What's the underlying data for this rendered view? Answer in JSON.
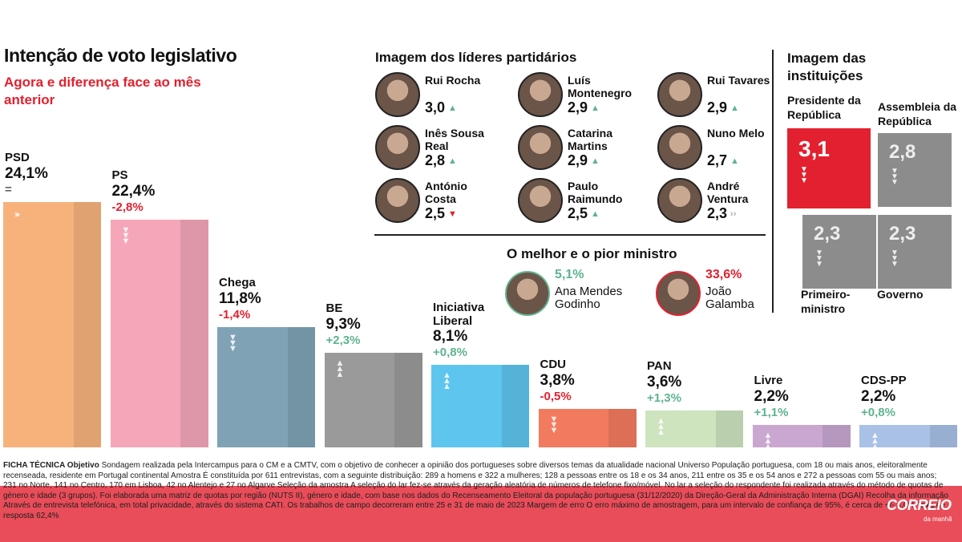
{
  "header": {
    "title": "Intenção de voto legislativo",
    "subtitle": "Agora e diferença face ao mês anterior"
  },
  "chart_data": {
    "type": "bar",
    "categories": [
      "PSD",
      "PS",
      "Chega",
      "BE",
      "Iniciativa Liberal",
      "CDU",
      "PAN",
      "Livre",
      "CDS-PP"
    ],
    "values": [
      24.1,
      22.4,
      11.8,
      9.3,
      8.1,
      3.8,
      3.6,
      2.2,
      2.2
    ],
    "value_labels": [
      "24,1%",
      "22,4%",
      "11,8%",
      "9,3%",
      "8,1%",
      "3,8%",
      "3,6%",
      "2,2%",
      "2,2%"
    ],
    "diff_labels": [
      "=",
      "-2,8%",
      "-1,4%",
      "+2,3%",
      "+0,8%",
      "-0,5%",
      "+1,3%",
      "+1,1%",
      "+0,8%"
    ],
    "diff_trend": [
      "flat",
      "down",
      "down",
      "up",
      "up",
      "down",
      "up",
      "up",
      "up"
    ],
    "colors": [
      "#f7b27c",
      "#f5a7b9",
      "#7fa3b5",
      "#9a9a9a",
      "#5ec5ee",
      "#f27b5f",
      "#cde4bf",
      "#c9a7d0",
      "#a9c1e6"
    ],
    "ylim": [
      0,
      26
    ]
  },
  "leaders": {
    "title": "Imagem dos líderes partidários",
    "items": [
      {
        "name": "Rui Rocha",
        "score": "3,0",
        "trend": "up"
      },
      {
        "name": "Luís Montenegro",
        "score": "2,9",
        "trend": "up"
      },
      {
        "name": "Rui Tavares",
        "score": "2,9",
        "trend": "up"
      },
      {
        "name": "Inês Sousa Real",
        "score": "2,8",
        "trend": "up"
      },
      {
        "name": "Catarina Martins",
        "score": "2,9",
        "trend": "up"
      },
      {
        "name": "Nuno Melo",
        "score": "2,7",
        "trend": "up"
      },
      {
        "name": "António Costa",
        "score": "2,5",
        "trend": "down"
      },
      {
        "name": "Paulo Raimundo",
        "score": "2,5",
        "trend": "up"
      },
      {
        "name": "André Ventura",
        "score": "2,3",
        "trend": "flat"
      }
    ]
  },
  "ministers": {
    "title": "O melhor e o pior ministro",
    "best": {
      "name": "Ana Mendes Godinho",
      "value": "5,1%"
    },
    "worst": {
      "name": "João Galamba",
      "value": "33,6%"
    }
  },
  "institutions": {
    "title": "Imagem das instituições",
    "items": [
      {
        "label": "Presidente da República",
        "value": "3,1",
        "color": "#e3202f"
      },
      {
        "label": "Assembleia da República",
        "value": "2,8",
        "color": "#8c8c8c"
      },
      {
        "label": "Primeiro-ministro",
        "value": "2,3",
        "color": "#8c8c8c"
      },
      {
        "label": "Governo",
        "value": "2,3",
        "color": "#8c8c8c"
      }
    ]
  },
  "footnote": {
    "lead": "FICHA TÉCNICA Objetivo",
    "text1": "Sondagem realizada pela Intercampus para o CM e a CMTV, com o objetivo de conhecer a opinião dos portugueses sobre diversos temas da atualidade nacional Universo População portuguesa, com 18 ou mais anos, eleitoralmente recenseada, residente em Portugal continental Amostra É constituída por 611 entrevistas, com a seguinte distribuição: 289 a homens e 322 a mulheres; 128 a pessoas entre os 18 e os 34 anos, 211 entre os 35 e os 54 anos e 272 a pessoas com 55 ou mais anos;",
    "text2": "231 no Norte, 141 no Centro, 170 em Lisboa, 42 no Alentejo e 27 no Algarve Seleção da amostra A seleção do lar fez-se através da geração aleatória de números de telefone fixo/móvel. No lar a seleção do respondente foi realizada através do método de quotas de género e idade (3 grupos). Foi elaborada uma matriz de quotas por região (NUTS II), género e idade, com base nos dados do Recenseamento Eleitoral da população portuguesa (31/12/2020) da Direção-Geral da Administração Interna (DGAI) Recolha da informação Através de entrevista telefónica, em total privacidade, através do sistema CATI. Os trabalhos de campo decorreram entre 25 e 31 de maio de 2023 Margem de erro O erro máximo de amostragem, para um intervalo de confiança de 95%, é cerca de +/- 4,0% Taxa de resposta 62,4%"
  },
  "brand": {
    "logo": "CORREIO",
    "logo_sub": "da manhã"
  }
}
